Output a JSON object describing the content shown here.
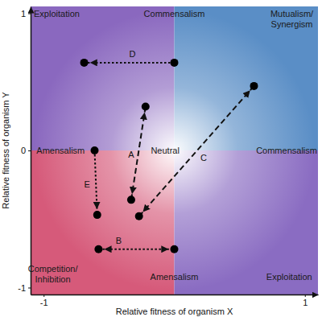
{
  "chart_data": {
    "type": "scatter",
    "xlabel": "Relative fitness of organism X",
    "ylabel": "Relative fitness of organism Y",
    "xlim": [
      -1.1,
      1.1
    ],
    "ylim": [
      -1.05,
      1.05
    ],
    "xticks": [
      -1,
      1
    ],
    "yticks": [
      -1,
      0,
      1
    ],
    "grid": false,
    "annotations": [
      {
        "text": "Exploitation",
        "x": -0.9,
        "y": 1.0
      },
      {
        "text": "Commensalism",
        "x": 0,
        "y": 1.0
      },
      {
        "text": "Mutualism/\nSynergism",
        "x": 0.9,
        "y": 0.96
      },
      {
        "text": "Amensalism",
        "x": -0.87,
        "y": 0
      },
      {
        "text": "Neutral",
        "x": -0.07,
        "y": 0
      },
      {
        "text": "Commensalism",
        "x": 0.86,
        "y": 0
      },
      {
        "text": "Competition/\nInhibition",
        "x": -0.93,
        "y": -0.9
      },
      {
        "text": "Amensalism",
        "x": 0,
        "y": -0.92
      },
      {
        "text": "Exploitation",
        "x": 0.88,
        "y": -0.92
      }
    ],
    "series": [
      {
        "name": "A",
        "x": [
          -0.33,
          -0.22
        ],
        "values": [
          -0.36,
          0.32
        ],
        "line_style": "dashed",
        "marker": "double-arrow"
      },
      {
        "name": "B",
        "x": [
          -0.58,
          0
        ],
        "values": [
          -0.72,
          -0.72
        ],
        "line_style": "dotted",
        "marker": "double-arrow"
      },
      {
        "name": "C",
        "x": [
          -0.27,
          0.61
        ],
        "values": [
          -0.48,
          0.47
        ],
        "line_style": "dashed",
        "marker": "double-arrow"
      },
      {
        "name": "D",
        "x": [
          0,
          -0.69
        ],
        "values": [
          0.64,
          0.64
        ],
        "line_style": "dotted",
        "marker": "arrow"
      },
      {
        "name": "E",
        "x": [
          -0.61,
          -0.59
        ],
        "values": [
          0,
          -0.47
        ],
        "line_style": "dotted",
        "marker": "arrow"
      }
    ]
  }
}
